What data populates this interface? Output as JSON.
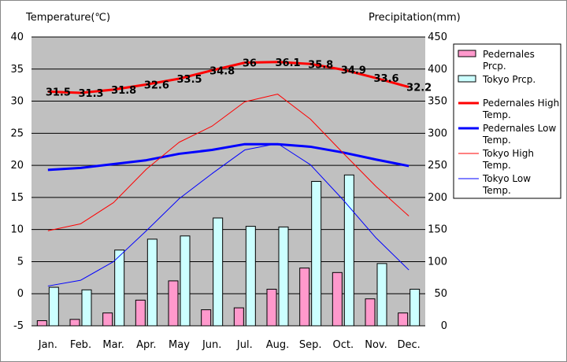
{
  "chart_data": {
    "type": "bar",
    "left_axis_title": "Temperature(℃)",
    "right_axis_title": "Precipitation(mm)",
    "categories": [
      "Jan.",
      "Feb.",
      "Mar.",
      "Apr.",
      "May",
      "Jun.",
      "Jul.",
      "Aug.",
      "Sep.",
      "Oct.",
      "Nov.",
      "Dec."
    ],
    "temp_axis": {
      "min": -5,
      "max": 40,
      "ticks": [
        -5,
        0,
        5,
        10,
        15,
        20,
        25,
        30,
        35,
        40
      ]
    },
    "precip_axis": {
      "min": 0,
      "max": 450,
      "ticks": [
        0,
        50,
        100,
        150,
        200,
        250,
        300,
        350,
        400,
        450
      ]
    },
    "grid": true,
    "legend_position": "right",
    "bar_series": [
      {
        "name": "Pedernales Prcp.",
        "color": "#ff99cc",
        "values": [
          8,
          10,
          20,
          40,
          70,
          25,
          28,
          57,
          90,
          83,
          42,
          20
        ]
      },
      {
        "name": "Tokyo Prcp.",
        "color": "#ccffff",
        "values": [
          60,
          56,
          118,
          135,
          140,
          168,
          155,
          154,
          225,
          235,
          97,
          57
        ]
      }
    ],
    "line_series": [
      {
        "name": "Pedernales High Temp.",
        "color": "#ff0000",
        "width": "thick",
        "values": [
          31.5,
          31.3,
          31.8,
          32.6,
          33.5,
          34.8,
          36,
          36.1,
          35.8,
          34.9,
          33.6,
          32.2
        ],
        "labels": [
          "31.5",
          "31.3",
          "31.8",
          "32.6",
          "33.5",
          "34.8",
          "36",
          "36.1",
          "35.8",
          "34.9",
          "33.6",
          "32.2"
        ]
      },
      {
        "name": "Pedernales Low Temp.",
        "color": "#0000ff",
        "width": "thick",
        "values": [
          19.3,
          19.6,
          20.2,
          20.8,
          21.8,
          22.4,
          23.3,
          23.3,
          22.9,
          22.0,
          20.9,
          19.9
        ]
      },
      {
        "name": "Tokyo High Temp.",
        "color": "#ff0000",
        "width": "thin",
        "values": [
          9.8,
          10.9,
          14.2,
          19.4,
          23.6,
          26.1,
          29.9,
          31.1,
          27.2,
          21.9,
          16.7,
          12.1
        ]
      },
      {
        "name": "Tokyo Low Temp.",
        "color": "#0000ff",
        "width": "thin",
        "values": [
          1.2,
          2.1,
          5.0,
          9.8,
          14.8,
          18.7,
          22.4,
          23.4,
          20.1,
          14.6,
          8.7,
          3.7
        ]
      }
    ]
  }
}
